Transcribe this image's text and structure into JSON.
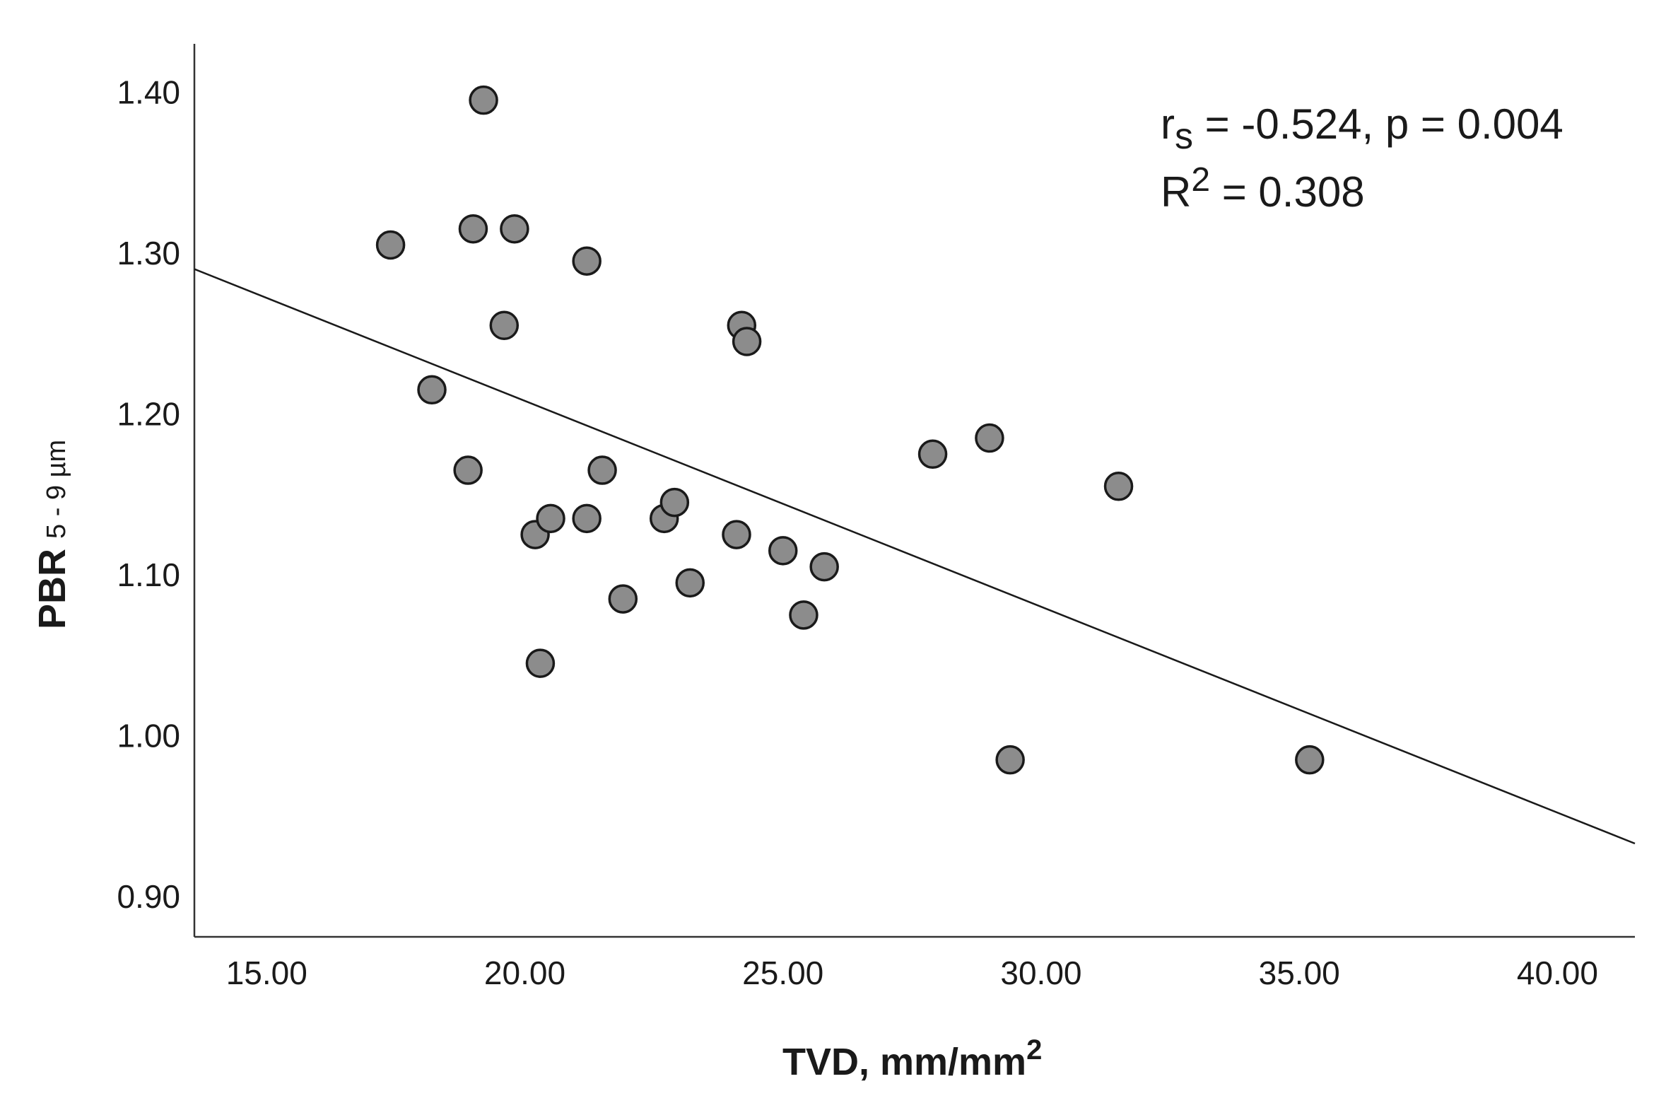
{
  "chart_data": {
    "type": "scatter",
    "title": "",
    "xlabel": "TVD, mm/mm",
    "xlabel_superscript": "2",
    "ylabel": "PBR",
    "ylabel_subscript": "5 - 9 µm",
    "xlim": [
      13.6,
      41.5
    ],
    "ylim": [
      0.875,
      1.43
    ],
    "x_ticks": [
      15,
      20,
      25,
      30,
      35,
      40
    ],
    "x_tick_labels": [
      "15.00",
      "20.00",
      "25.00",
      "30.00",
      "35.00",
      "40.00"
    ],
    "y_ticks": [
      0.9,
      1.0,
      1.1,
      1.2,
      1.3,
      1.4
    ],
    "y_tick_labels": [
      "0.90",
      "1.00",
      "1.10",
      "1.20",
      "1.30",
      "1.40"
    ],
    "points": [
      {
        "x": 19.2,
        "y": 1.395
      },
      {
        "x": 17.4,
        "y": 1.305
      },
      {
        "x": 19.0,
        "y": 1.315
      },
      {
        "x": 19.8,
        "y": 1.315
      },
      {
        "x": 21.2,
        "y": 1.295
      },
      {
        "x": 19.6,
        "y": 1.255
      },
      {
        "x": 18.2,
        "y": 1.215
      },
      {
        "x": 24.2,
        "y": 1.255
      },
      {
        "x": 24.3,
        "y": 1.245
      },
      {
        "x": 18.9,
        "y": 1.165
      },
      {
        "x": 21.5,
        "y": 1.165
      },
      {
        "x": 21.2,
        "y": 1.135
      },
      {
        "x": 20.2,
        "y": 1.125
      },
      {
        "x": 20.5,
        "y": 1.135
      },
      {
        "x": 22.7,
        "y": 1.135
      },
      {
        "x": 22.9,
        "y": 1.145
      },
      {
        "x": 24.1,
        "y": 1.125
      },
      {
        "x": 25.0,
        "y": 1.115
      },
      {
        "x": 25.8,
        "y": 1.105
      },
      {
        "x": 23.2,
        "y": 1.095
      },
      {
        "x": 21.9,
        "y": 1.085
      },
      {
        "x": 25.4,
        "y": 1.075
      },
      {
        "x": 20.3,
        "y": 1.045
      },
      {
        "x": 27.9,
        "y": 1.175
      },
      {
        "x": 29.0,
        "y": 1.185
      },
      {
        "x": 31.5,
        "y": 1.155
      },
      {
        "x": 29.4,
        "y": 0.985
      },
      {
        "x": 35.2,
        "y": 0.985
      }
    ],
    "fit_line": {
      "x": [
        13.6,
        41.5
      ],
      "y": [
        1.29,
        0.933
      ]
    },
    "annotations": {
      "rs_prefix": "r",
      "rs_sub": "s",
      "rs_text": " = -0.524, p = 0.004",
      "r2_prefix": "R",
      "r2_sup": "2",
      "r2_text": " = 0.308"
    },
    "grid": false,
    "colors": {
      "marker_fill": "#8c8c8c",
      "marker_edge": "#1a1a1a",
      "line": "#1a1a1a"
    }
  }
}
